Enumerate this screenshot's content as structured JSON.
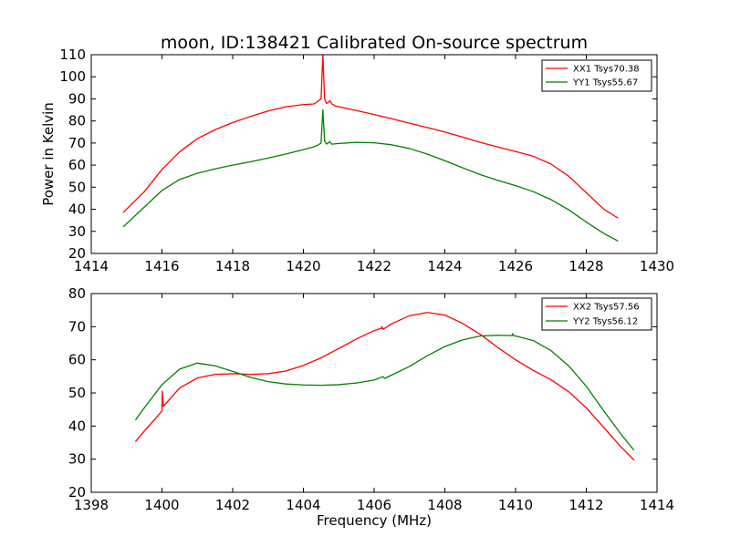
{
  "chart_data": [
    {
      "type": "line",
      "title": "moon, ID:138421 Calibrated On-source spectrum",
      "xlabel": "",
      "ylabel": "Power in Kelvin",
      "xlim": [
        1414,
        1430
      ],
      "ylim": [
        20,
        110
      ],
      "xticks": [
        "1414",
        "1416",
        "1418",
        "1420",
        "1422",
        "1424",
        "1426",
        "1428",
        "1430"
      ],
      "yticks": [
        "20",
        "30",
        "40",
        "50",
        "60",
        "70",
        "80",
        "90",
        "100",
        "110"
      ],
      "grid": false,
      "legend_position": "top-right",
      "series": [
        {
          "name": "XX1 Tsys70.38",
          "color": "#ff0000",
          "x": [
            1414.9,
            1415.5,
            1416,
            1416.5,
            1417,
            1417.5,
            1418,
            1418.5,
            1419,
            1419.5,
            1420,
            1420.3,
            1420.4,
            1420.5,
            1420.55,
            1420.6,
            1420.65,
            1420.7,
            1420.75,
            1420.8,
            1420.9,
            1421,
            1421.5,
            1422,
            1422.5,
            1423,
            1423.5,
            1424,
            1424.5,
            1425,
            1425.5,
            1426,
            1426.5,
            1427,
            1427.5,
            1428,
            1428.5,
            1428.9
          ],
          "y": [
            38.5,
            48,
            58,
            66,
            72,
            76,
            79.3,
            82,
            84.5,
            86.4,
            87.4,
            87.7,
            88.8,
            90,
            110,
            90,
            88,
            88.3,
            89.2,
            87.8,
            86.8,
            86.4,
            84.7,
            82.9,
            81,
            79,
            77,
            75,
            72.7,
            70.3,
            68.2,
            66.2,
            64,
            60.5,
            55,
            47.5,
            40,
            36
          ]
        },
        {
          "name": "YY1 Tsys55.67",
          "color": "#008000",
          "x": [
            1414.9,
            1415.5,
            1416,
            1416.5,
            1417,
            1417.5,
            1418,
            1418.5,
            1419,
            1419.5,
            1420,
            1420.3,
            1420.4,
            1420.5,
            1420.55,
            1420.6,
            1420.65,
            1420.7,
            1420.75,
            1420.8,
            1421,
            1421.5,
            1422,
            1422.5,
            1423,
            1423.5,
            1424,
            1424.5,
            1425,
            1425.5,
            1426,
            1426.5,
            1427,
            1427.5,
            1428,
            1428.5,
            1428.9
          ],
          "y": [
            32,
            41,
            48.5,
            53.5,
            56.3,
            58.3,
            60,
            61.5,
            63.2,
            65,
            67,
            68.3,
            69,
            70,
            85,
            71,
            69.5,
            70,
            70.6,
            69.5,
            69.8,
            70.3,
            70.1,
            69.2,
            67.5,
            65,
            62,
            58.8,
            55.7,
            53.1,
            50.7,
            48,
            44.4,
            39.8,
            34.2,
            29,
            25.6
          ]
        }
      ]
    },
    {
      "type": "line",
      "title": "",
      "xlabel": "Frequency (MHz)",
      "ylabel": "",
      "xlim": [
        1398,
        1414
      ],
      "ylim": [
        20,
        80
      ],
      "xticks": [
        "1398",
        "1400",
        "1402",
        "1404",
        "1406",
        "1408",
        "1410",
        "1412",
        "1414"
      ],
      "yticks": [
        "20",
        "30",
        "40",
        "50",
        "60",
        "70",
        "80"
      ],
      "grid": false,
      "legend_position": "top-right",
      "series": [
        {
          "name": "XX2 Tsys57.56",
          "color": "#ff0000",
          "x": [
            1399.25,
            1399.5,
            1400,
            1400.01,
            1400.04,
            1400.5,
            1401,
            1401.5,
            1402,
            1402.5,
            1403,
            1403.5,
            1404,
            1404.5,
            1405,
            1405.5,
            1406,
            1406.2,
            1406.22,
            1406.25,
            1406.5,
            1407,
            1407.5,
            1408,
            1408.5,
            1409,
            1409.5,
            1410,
            1410.5,
            1411,
            1411.5,
            1412,
            1412.5,
            1413,
            1413.35
          ],
          "y": [
            35.3,
            38.5,
            44.5,
            50.5,
            46,
            51.5,
            54.5,
            55.6,
            55.8,
            55.6,
            55.8,
            56.6,
            58.3,
            60.6,
            63.4,
            66.3,
            68.8,
            69.5,
            70,
            69.2,
            70.9,
            73.3,
            74.3,
            73.5,
            71,
            67.7,
            63.7,
            60,
            56.8,
            54,
            50.4,
            45.5,
            39.5,
            33.5,
            29.7
          ]
        },
        {
          "name": "YY2 Tsys56.12",
          "color": "#008000",
          "x": [
            1399.25,
            1399.5,
            1400,
            1400.5,
            1401,
            1401.5,
            1402,
            1402.5,
            1403,
            1403.5,
            1404,
            1404.5,
            1405,
            1405.5,
            1406,
            1406.25,
            1406.3,
            1406.5,
            1407,
            1407.5,
            1408,
            1408.5,
            1409,
            1409.5,
            1409.9,
            1409.92,
            1409.95,
            1410,
            1410.5,
            1411,
            1411.5,
            1412,
            1412.5,
            1413,
            1413.35
          ],
          "y": [
            41.8,
            45.5,
            52.5,
            57.2,
            59,
            58.2,
            56.5,
            54.7,
            53.4,
            52.7,
            52.4,
            52.3,
            52.5,
            53,
            53.9,
            54.9,
            54.4,
            55.4,
            58,
            61.2,
            64,
            66,
            67.2,
            67.4,
            67.3,
            67.9,
            67.2,
            67.2,
            65.8,
            62.8,
            58.2,
            52,
            44.5,
            37.3,
            32.7
          ]
        }
      ]
    }
  ]
}
